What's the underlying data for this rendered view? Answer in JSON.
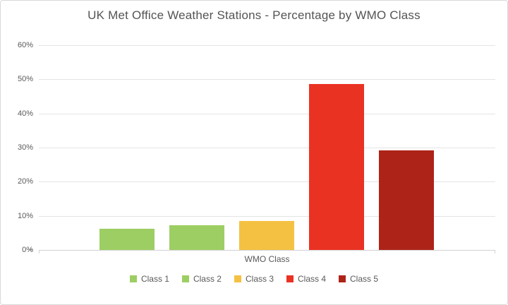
{
  "chart_data": {
    "type": "bar",
    "title": "UK Met Office Weather Stations - Percentage by WMO Class",
    "xlabel": "WMO Class",
    "ylabel": "",
    "categories": [
      "Class 1",
      "Class 2",
      "Class 3",
      "Class 4",
      "Class 5"
    ],
    "values": [
      6.3,
      7.3,
      8.4,
      48.7,
      29.2
    ],
    "bar_colors": [
      "#9DCE63",
      "#9DCE63",
      "#F4C142",
      "#EA3223",
      "#AE2318"
    ],
    "ylim": [
      0,
      60
    ],
    "ytick_step": 10,
    "ytick_labels": [
      "0%",
      "10%",
      "20%",
      "30%",
      "40%",
      "50%",
      "60%"
    ],
    "grid": true,
    "legend_position": "bottom",
    "legend": [
      {
        "label": "Class 1",
        "color": "#9DCE63"
      },
      {
        "label": "Class 2",
        "color": "#9DCE63"
      },
      {
        "label": "Class 3",
        "color": "#F4C142"
      },
      {
        "label": "Class 4",
        "color": "#EA3223"
      },
      {
        "label": "Class 5",
        "color": "#AE2318"
      }
    ],
    "colors": {
      "background": "#FFFFFF",
      "border": "#D9D9D9",
      "gridline": "#E4E4E4",
      "axis_line": "#D2D2D2",
      "text": "#595959",
      "title_text": "#545454"
    }
  }
}
